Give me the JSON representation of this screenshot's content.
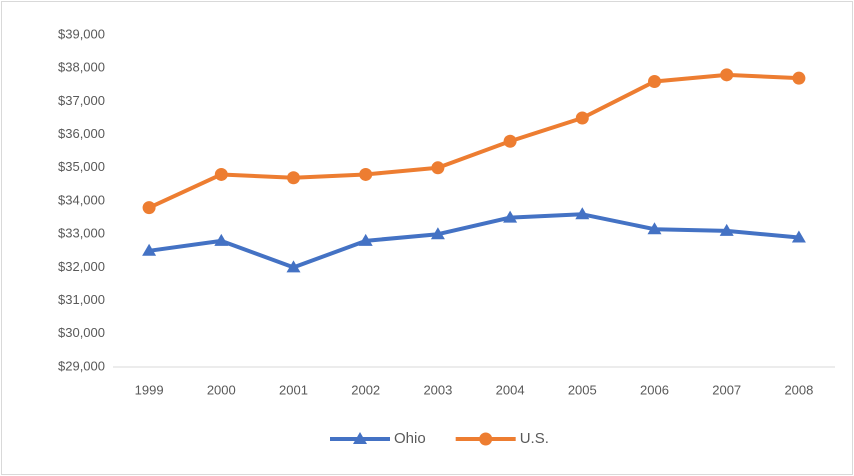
{
  "chart_data": {
    "type": "line",
    "categories": [
      "1999",
      "2000",
      "2001",
      "2002",
      "2003",
      "2004",
      "2005",
      "2006",
      "2007",
      "2008"
    ],
    "series": [
      {
        "name": "Ohio",
        "color": "#4472c4",
        "marker": "triangle",
        "values": [
          32500,
          32800,
          32000,
          32800,
          33000,
          33500,
          33600,
          33150,
          33100,
          32900
        ]
      },
      {
        "name": "U.S.",
        "color": "#ed7d31",
        "marker": "circle",
        "values": [
          33800,
          34800,
          34700,
          34800,
          35000,
          35800,
          36500,
          37600,
          37800,
          37700
        ]
      }
    ],
    "ylim": [
      29000,
      39000
    ],
    "yticks": [
      {
        "value": 29000,
        "label": "$29,000"
      },
      {
        "value": 30000,
        "label": "$30,000"
      },
      {
        "value": 31000,
        "label": "$31,000"
      },
      {
        "value": 32000,
        "label": "$32,000"
      },
      {
        "value": 33000,
        "label": "$33,000"
      },
      {
        "value": 34000,
        "label": "$34,000"
      },
      {
        "value": 35000,
        "label": "$35,000"
      },
      {
        "value": 36000,
        "label": "$36,000"
      },
      {
        "value": 37000,
        "label": "$37,000"
      },
      {
        "value": 38000,
        "label": "$38,000"
      },
      {
        "value": 39000,
        "label": "$39,000"
      }
    ],
    "grid": false,
    "legend": "bottom"
  }
}
